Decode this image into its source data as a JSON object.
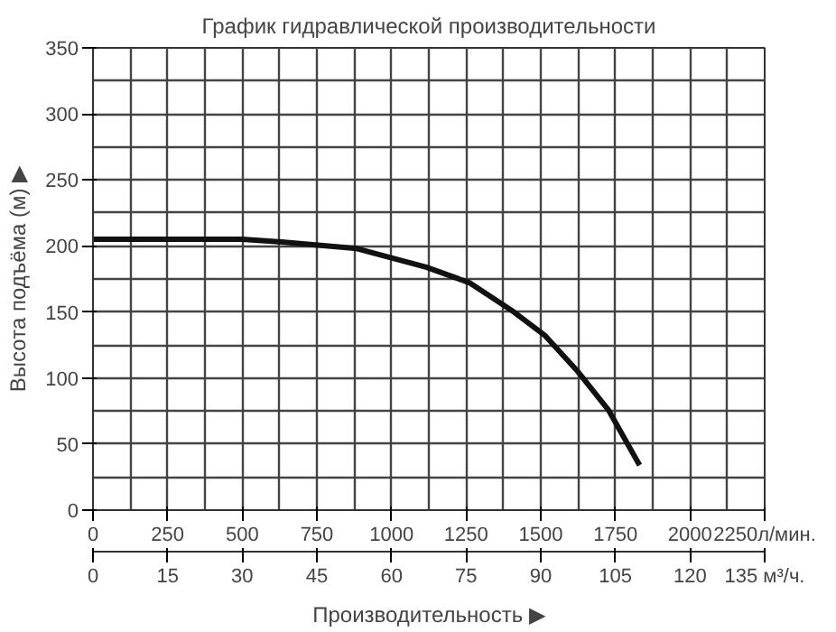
{
  "chart_data": {
    "type": "line",
    "title": "График гидравлической производительности",
    "xlabel": "Производительность ▶",
    "ylabel": "Высота подъёма (м) ▶",
    "x": [
      0,
      250,
      500,
      632,
      884,
      1116,
      1263,
      1410,
      1515,
      1620,
      1726,
      1831
    ],
    "series": [
      {
        "color": "#111111",
        "values": [
          205,
          205,
          205,
          203,
          198,
          184,
          172,
          150,
          132,
          106,
          76,
          34
        ]
      }
    ],
    "xlim": [
      0,
      2250
    ],
    "xticks": [
      0,
      250,
      500,
      750,
      1000,
      1250,
      1500,
      1750,
      2000,
      {
        "value": 2250,
        "label": "2250л/мин."
      }
    ],
    "x2lim": [
      0,
      135
    ],
    "x2ticks": [
      0,
      15,
      30,
      45,
      60,
      75,
      90,
      105,
      120,
      {
        "value": 135,
        "label": "135 м³/ч."
      }
    ],
    "ylim": [
      0,
      350
    ],
    "yticks": [
      0,
      50,
      100,
      150,
      200,
      250,
      300,
      350
    ],
    "grid": true,
    "marker": "none",
    "line_style": "solid"
  }
}
